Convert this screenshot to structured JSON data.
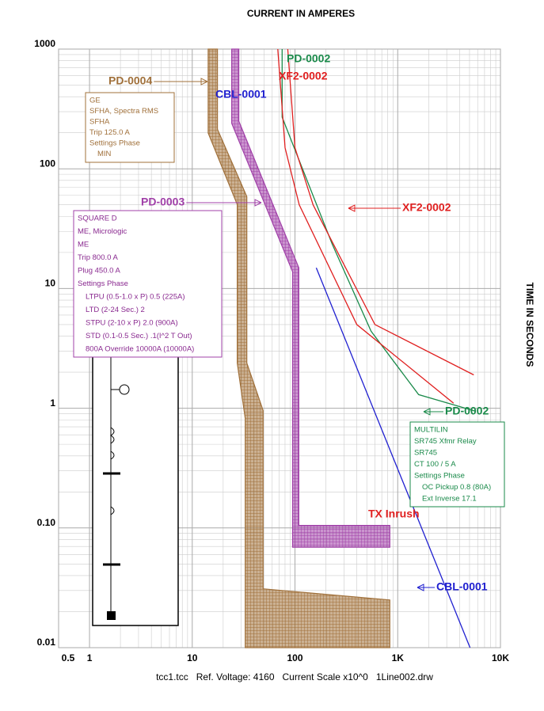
{
  "chart_data": {
    "type": "line",
    "title": "CURRENT IN AMPERES",
    "y_label": "TIME IN SECONDS",
    "footer": "tcc1.tcc   Ref. Voltage: 4160   Current Scale x10^0   1Line002.drw",
    "log_x": true,
    "log_y": true,
    "grid": true,
    "xlim": [
      0.5,
      10000
    ],
    "ylim": [
      0.01,
      1000
    ],
    "xticks": [
      0.5,
      1,
      10,
      100,
      {
        "value": 1000,
        "label": "1K"
      },
      {
        "value": 10000,
        "label": "10K"
      }
    ],
    "yticks": [
      0.01,
      {
        "value": 0.1,
        "label": "0.10"
      },
      1,
      10,
      100,
      1000
    ],
    "series": [
      {
        "name": "PD-0004",
        "color": "#a0703a",
        "kind": "band",
        "x": [
          14.3,
          17.6,
          17.6,
          34,
          34,
          49,
          49,
          838,
          838,
          32.8,
          32.8,
          27.4,
          27.4,
          14.3
        ],
        "values": [
          1000,
          1000,
          214,
          58.6,
          2.39,
          0.955,
          0.031,
          0.025,
          0.01,
          0.01,
          0.82,
          2.39,
          50.3,
          199
        ]
      },
      {
        "name": "PD-0003",
        "color": "#a040a8",
        "kind": "band",
        "x": [
          24.2,
          28.4,
          28.4,
          109,
          109,
          838,
          838,
          94.8,
          94.8,
          24.2
        ],
        "values": [
          1000,
          1000,
          250,
          14.9,
          0.105,
          0.105,
          0.069,
          0.069,
          13.8,
          240
        ]
      },
      {
        "name": "PD-0002",
        "color": "#1a8a4a",
        "kind": "line",
        "x": [
          75,
          75,
          230,
          550,
          1600,
          5600
        ],
        "values": [
          1000,
          270,
          23.5,
          4.4,
          1.3,
          0.95
        ]
      },
      {
        "name": "XF2-0002",
        "color": "#e02020",
        "kind": "line",
        "x": [
          68,
          80,
          110,
          400,
          3500,
          null,
          85,
          100,
          150,
          600,
          5500
        ],
        "values": [
          1000,
          150,
          50,
          5,
          1.1,
          null,
          1000,
          150,
          50,
          5,
          1.9
        ]
      },
      {
        "name": "CBL-0001",
        "color": "#2020d0",
        "kind": "line",
        "x": [
          161,
          5060
        ],
        "values": [
          14.9,
          0.01
        ]
      }
    ],
    "annotations": {
      "tx_inrush": "TX Inrush",
      "pd0004_box": [
        "GE",
        "SFHA, Spectra RMS",
        "SFHA",
        "Trip 125.0 A",
        "Settings Phase",
        "MIN"
      ],
      "pd0003_box": [
        "SQUARE D",
        "ME, Micrologic",
        "ME",
        "Trip 800.0 A",
        "Plug 450.0 A",
        "Settings Phase",
        "LTPU (0.5-1.0 x P) 0.5 (225A)",
        "LTD (2-24 Sec.) 2",
        "STPU (2-10 x P) 2.0 (900A)",
        "STD (0.1-0.5 Sec.) .1(I^2 T Out)",
        "800A Override 10000A (10000A)"
      ],
      "pd0002_box": [
        "MULTILIN",
        "SR745 Xfmr Relay",
        "SR745",
        "CT 100 / 5 A",
        "Settings Phase",
        "OC Pickup 0.8 (80A)",
        "Ext Inverse 17.1"
      ]
    }
  }
}
